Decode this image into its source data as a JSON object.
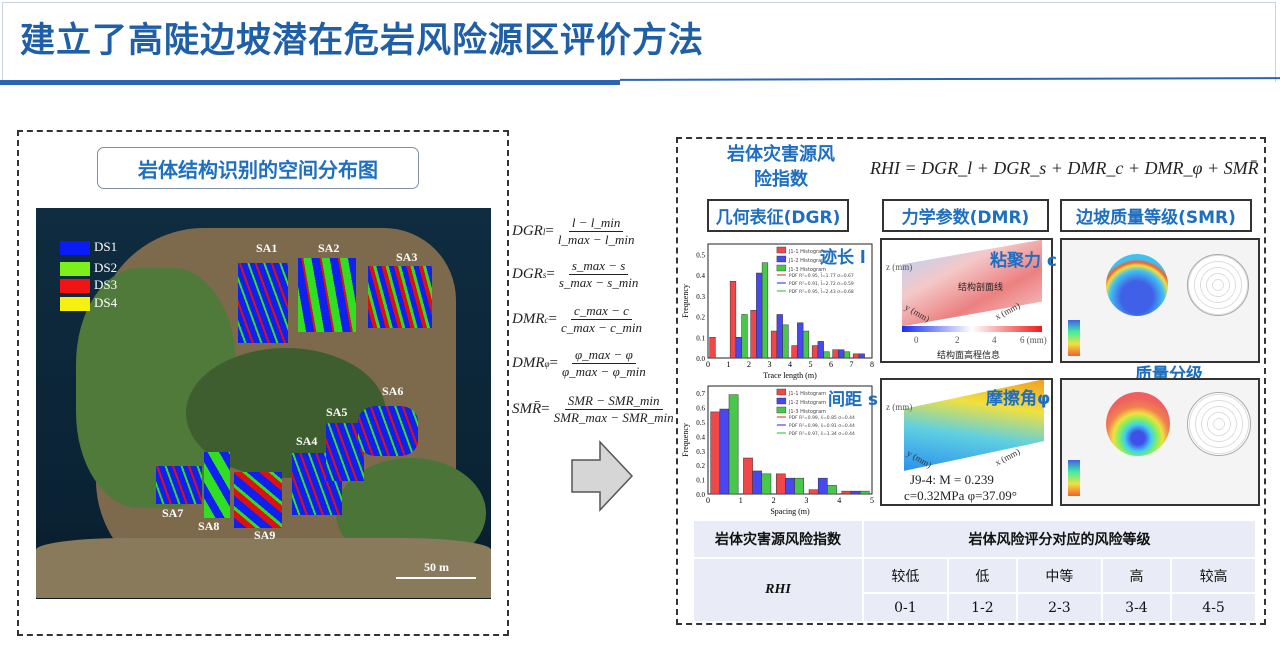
{
  "title": "建立了高陡边坡潜在危岩风险源区评价方法",
  "left_panel": {
    "label": "岩体结构识别的空间分布图",
    "legend": [
      {
        "label": "DS1",
        "color": "#0a1cf5"
      },
      {
        "label": "DS2",
        "color": "#7cf01a"
      },
      {
        "label": "DS3",
        "color": "#f01414"
      },
      {
        "label": "DS4",
        "color": "#f5f010"
      }
    ],
    "areas": [
      "SA1",
      "SA2",
      "SA3",
      "SA4",
      "SA5",
      "SA6",
      "SA7",
      "SA8",
      "SA9"
    ],
    "scale": "50 m"
  },
  "formulas": [
    {
      "lhs": "DGR",
      "sub": "l",
      "num": "l − l_min",
      "den": "l_max − l_min"
    },
    {
      "lhs": "DGR",
      "sub": "s",
      "num": "s_max − s",
      "den": "s_max − s_min"
    },
    {
      "lhs": "DMR",
      "sub": "c",
      "num": "c_max − c",
      "den": "c_max − c_min"
    },
    {
      "lhs": "DMR",
      "sub": "φ",
      "num": "φ_max − φ",
      "den": "φ_max − φ_min"
    },
    {
      "lhs": "SMR̄",
      "sub": "",
      "num": "SMR − SMR_min",
      "den": "SMR_max − SMR_min"
    }
  ],
  "right_panel": {
    "rhi_title": "岩体灾害源风险指数",
    "rhi_formula": "RHI = DGR_l + DGR_s + DMR_c + DMR_φ + SMR̄",
    "headers": [
      "几何表征(DGR)",
      "力学参数(DMR)",
      "边坡质量等级(SMR)"
    ],
    "overlays": {
      "trace": "迹长 l",
      "spacing": "间距 s",
      "cohesion": "粘聚力 c",
      "friction": "摩擦角φ",
      "quality": "质量分级"
    },
    "cohesion_img": {
      "profile": "结构剖面线",
      "colorbar_label": "结构面高程信息",
      "ticks": [
        "0",
        "2",
        "4",
        "6 (mm)"
      ],
      "z": "z (mm)",
      "x": "x (mm)",
      "y": "y (mm)"
    },
    "friction_img": {
      "line1": "J9-4: M = 0.239",
      "line2": "c=0.32MPa φ=37.09°",
      "z": "z (mm)",
      "x": "x (mm)",
      "y": "y (mm)"
    }
  },
  "chart_data": [
    {
      "type": "bar",
      "xlabel": "Trace length (m)",
      "ylabel": "Frequency",
      "xlim": [
        0,
        8
      ],
      "ylim": [
        0,
        0.55
      ],
      "xticks": [
        "0",
        "1",
        "2",
        "3",
        "4",
        "5",
        "6",
        "7",
        "8"
      ],
      "yticks": [
        "0.0",
        "0.1",
        "0.2",
        "0.3",
        "0.4",
        "0.5"
      ],
      "x": [
        0.5,
        1.5,
        2.5,
        3.5,
        4.5,
        5.5,
        6.5,
        7.5
      ],
      "series": [
        {
          "name": "J1-1 Histogram",
          "color": "#f04848",
          "values": [
            0.1,
            0.37,
            0.23,
            0.13,
            0.06,
            0.06,
            0.04,
            0.02
          ]
        },
        {
          "name": "J1-2 Histogram",
          "color": "#4848f0",
          "values": [
            0,
            0.1,
            0.41,
            0.21,
            0.17,
            0.08,
            0.04,
            0.02
          ]
        },
        {
          "name": "J1-3 Histogram",
          "color": "#48c848",
          "values": [
            0,
            0.21,
            0.46,
            0.16,
            0.13,
            0.03,
            0.03,
            0
          ]
        }
      ],
      "pdf_legend": [
        "PDF R²=0.95, l̄=1.77 σ=0.67",
        "PDF R²=0.91, l̄=2.72 σ=0.59",
        "PDF R²=0.95, l̄=2.43 σ=0.68"
      ]
    },
    {
      "type": "bar",
      "xlabel": "Spacing (m)",
      "ylabel": "Frequency",
      "xlim": [
        0,
        5
      ],
      "ylim": [
        0,
        0.75
      ],
      "xticks": [
        "0",
        "1",
        "2",
        "3",
        "4",
        "5"
      ],
      "yticks": [
        "0.0",
        "0.1",
        "0.2",
        "0.3",
        "0.4",
        "0.5",
        "0.6",
        "0.7"
      ],
      "x": [
        0.5,
        1.5,
        2.5,
        3.5,
        4.5
      ],
      "series": [
        {
          "name": "J1-1 Histogram",
          "color": "#f04848",
          "values": [
            0.57,
            0.25,
            0.14,
            0.03,
            0.02
          ]
        },
        {
          "name": "J1-2 Histogram",
          "color": "#4848f0",
          "values": [
            0.59,
            0.16,
            0.11,
            0.11,
            0.02
          ]
        },
        {
          "name": "J1-3 Histogram",
          "color": "#48c848",
          "values": [
            0.69,
            0.14,
            0.11,
            0.06,
            0.02
          ]
        }
      ],
      "pdf_legend": [
        "PDF R²=0.99, s̄=0.85 σ=0.44",
        "PDF R²=0.99, s̄=0.91 σ=0.44",
        "PDF R²=0.97, s̄=1.34 σ=0.44"
      ]
    }
  ],
  "risk_table": {
    "header_left": "岩体灾害源风险指数",
    "header_right": "岩体风险评分对应的风险等级",
    "row_label": "RHI",
    "levels": [
      "较低",
      "低",
      "中等",
      "高",
      "较高"
    ],
    "ranges": [
      "0-1",
      "1-2",
      "2-3",
      "3-4",
      "4-5"
    ]
  }
}
